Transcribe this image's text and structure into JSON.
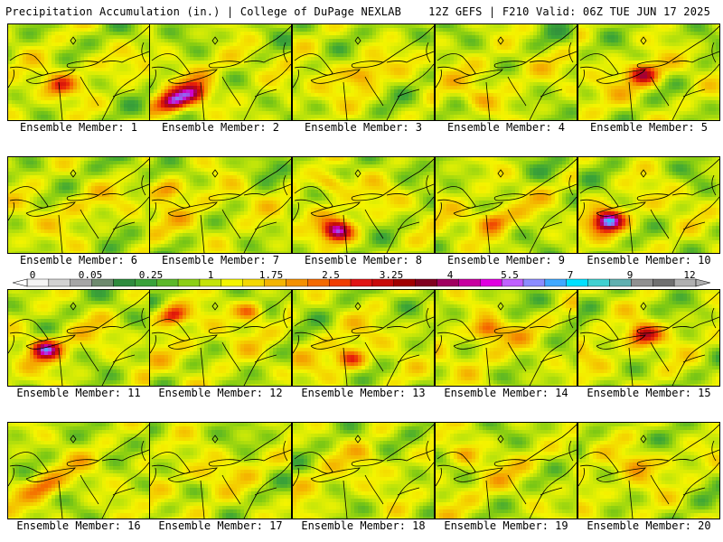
{
  "header": {
    "left": "Precipitation Accumulation (in.) | College of DuPage NEXLAB",
    "right": "12Z GEFS | F210 Valid: 06Z TUE JUN 17 2025"
  },
  "colorbar": {
    "tick_labels": [
      "0",
      "0.05",
      "0.25",
      "1",
      "1.75",
      "2.5",
      "3.25",
      "4",
      "5.5",
      "7",
      "9",
      "12"
    ],
    "colors": [
      "#f4f4f4",
      "#d2d2d2",
      "#a6a6a6",
      "#6e8a6e",
      "#2e8b3d",
      "#3aa23a",
      "#5cb82a",
      "#8ccf16",
      "#c4e40a",
      "#f4f400",
      "#f4d800",
      "#f4b400",
      "#f49000",
      "#f46a00",
      "#f03c00",
      "#e01414",
      "#c80a0a",
      "#a00000",
      "#800020",
      "#a00060",
      "#c800a0",
      "#e000e0",
      "#c060ff",
      "#8c8cff",
      "#40a8ff",
      "#00e0ff",
      "#40d0d0",
      "#60b0b0",
      "#909090",
      "#707070",
      "#b0b0b0"
    ]
  },
  "panels": [
    {
      "caption": "Ensemble Member: 1",
      "hot": [
        [
          0.35,
          0.62,
          0.7
        ]
      ]
    },
    {
      "caption": "Ensemble Member: 2",
      "hot": [
        [
          0.15,
          0.8,
          1.0
        ],
        [
          0.3,
          0.7,
          0.9
        ]
      ]
    },
    {
      "caption": "Ensemble Member: 3",
      "hot": [
        [
          0.5,
          0.5,
          0.6
        ]
      ]
    },
    {
      "caption": "Ensemble Member: 4",
      "hot": [
        [
          0.3,
          0.75,
          0.5
        ]
      ]
    },
    {
      "caption": "Ensemble Member: 5",
      "hot": [
        [
          0.45,
          0.5,
          0.85
        ]
      ]
    },
    {
      "caption": "Ensemble Member: 6",
      "hot": [
        [
          0.5,
          0.5,
          0.4
        ]
      ]
    },
    {
      "caption": "Ensemble Member: 7",
      "hot": [
        [
          0.12,
          0.32,
          0.7
        ]
      ]
    },
    {
      "caption": "Ensemble Member: 8",
      "hot": [
        [
          0.25,
          0.25,
          0.7
        ],
        [
          0.3,
          0.75,
          1.0
        ]
      ]
    },
    {
      "caption": "Ensemble Member: 9",
      "hot": [
        [
          0.4,
          0.65,
          0.7
        ]
      ]
    },
    {
      "caption": "Ensemble Member: 10",
      "hot": [
        [
          0.2,
          0.65,
          1.1
        ]
      ]
    },
    {
      "caption": "Ensemble Member: 11",
      "hot": [
        [
          0.25,
          0.6,
          1.0
        ]
      ]
    },
    {
      "caption": "Ensemble Member: 12",
      "hot": [
        [
          0.15,
          0.25,
          0.9
        ],
        [
          0.7,
          0.2,
          0.8
        ]
      ]
    },
    {
      "caption": "Ensemble Member: 13",
      "hot": [
        [
          0.4,
          0.7,
          0.8
        ]
      ]
    },
    {
      "caption": "Ensemble Member: 14",
      "hot": [
        [
          0.35,
          0.4,
          0.8
        ]
      ]
    },
    {
      "caption": "Ensemble Member: 15",
      "hot": [
        [
          0.45,
          0.45,
          0.85
        ]
      ]
    },
    {
      "caption": "Ensemble Member: 16",
      "hot": [
        [
          0.25,
          0.65,
          0.6
        ]
      ]
    },
    {
      "caption": "Ensemble Member: 17",
      "hot": [
        [
          0.4,
          0.5,
          0.45
        ]
      ]
    },
    {
      "caption": "Ensemble Member: 18",
      "hot": [
        [
          0.5,
          0.3,
          0.45
        ]
      ]
    },
    {
      "caption": "Ensemble Member: 19",
      "hot": [
        [
          0.2,
          0.3,
          0.55
        ]
      ]
    },
    {
      "caption": "Ensemble Member: 20",
      "hot": [
        [
          0.4,
          0.4,
          0.6
        ]
      ]
    }
  ]
}
